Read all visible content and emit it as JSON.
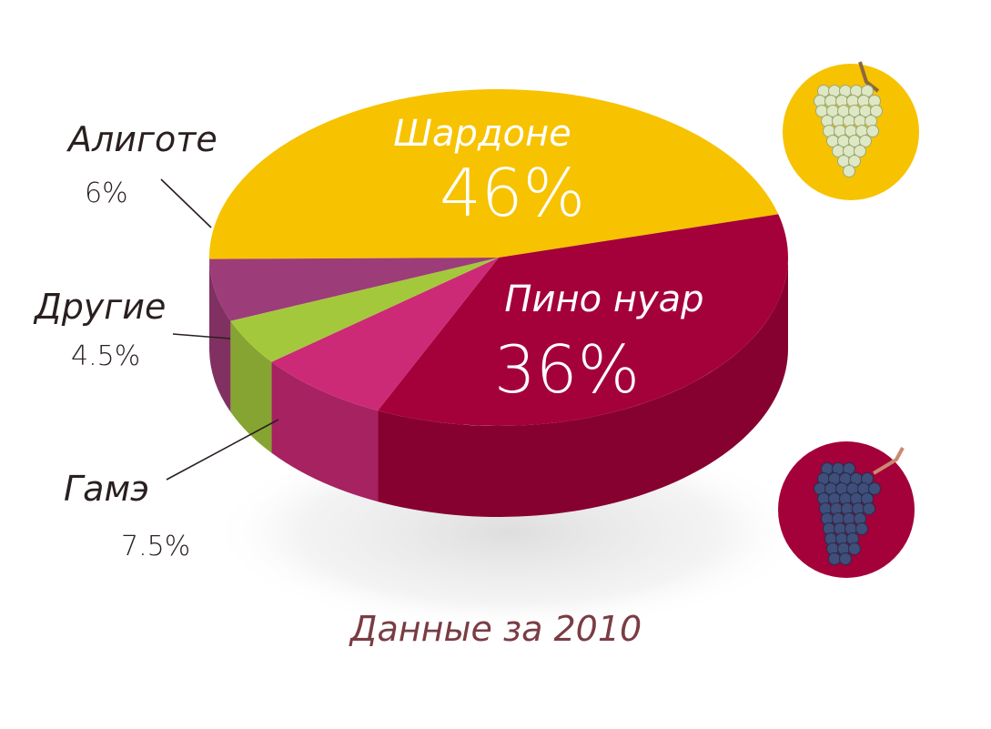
{
  "chart_data": {
    "type": "pie",
    "three_d": true,
    "caption": "Данные за 2010",
    "slices": [
      {
        "name": "Шардоне",
        "value": 46,
        "label": "46%",
        "color": "#f7c200"
      },
      {
        "name": "Пино нуар",
        "value": 36,
        "label": "36%",
        "color": "#a4003a"
      },
      {
        "name": "Гамэ",
        "value": 7.5,
        "label": "7.5%",
        "color": "#cc2a76"
      },
      {
        "name": "Другие",
        "value": 4.5,
        "label": "4.5%",
        "color": "#a4c83c"
      },
      {
        "name": "Алиготе",
        "value": 6,
        "label": "6%",
        "color": "#9c3c78"
      }
    ],
    "colors": {
      "label_dark": "#2a1f1f",
      "label_light": "#ffffff",
      "caption": "#7a3c44",
      "white_grape_circle": "#f7c200",
      "red_grape_circle": "#a4003a"
    },
    "icons": [
      "white-grapes-icon",
      "red-grapes-icon"
    ]
  }
}
